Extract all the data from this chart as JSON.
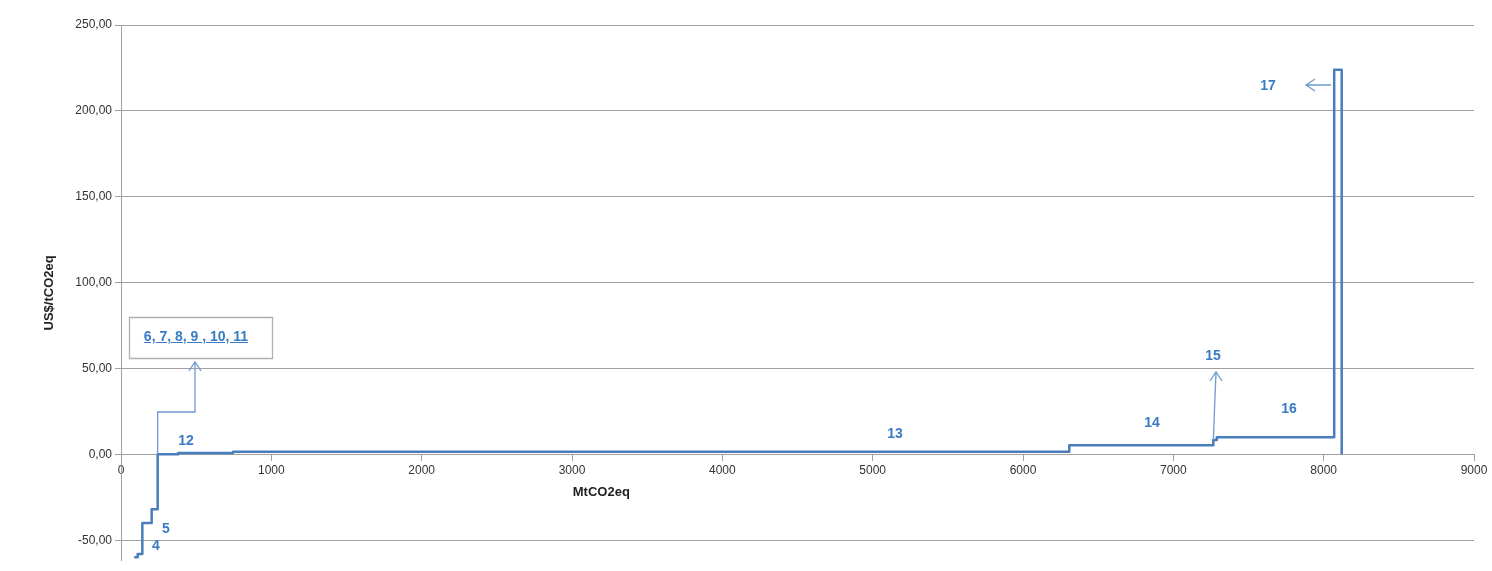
{
  "chart_data": {
    "type": "step",
    "xlabel": "MtCO2eq",
    "ylabel": "US$/tCO2eq",
    "x": [
      88,
      111,
      142,
      204,
      244,
      380,
      745,
      6308,
      7266,
      7289,
      8070,
      8120
    ],
    "series": [
      {
        "color": "#4a7ebb",
        "values": [
          -60,
          -58,
          -40,
          -32,
          0,
          0.8,
          1.5,
          5.3,
          8.4,
          10,
          224,
          0
        ]
      }
    ],
    "xlim": [
      0,
      9000
    ],
    "xticks": [
      0,
      1000,
      2000,
      3000,
      4000,
      5000,
      6000,
      7000,
      8000,
      9000
    ],
    "ylim": [
      -62,
      250
    ],
    "yticks": [
      {
        "value": -50,
        "label": "-50,00"
      },
      {
        "value": 0,
        "label": "0,00"
      },
      {
        "value": 50,
        "label": "50,00"
      },
      {
        "value": 100,
        "label": "100,00"
      },
      {
        "value": 150,
        "label": "150,00"
      },
      {
        "value": 200,
        "label": "200,00"
      },
      {
        "value": 250,
        "label": "250,00"
      }
    ],
    "grid": "y",
    "marker": "none",
    "line_style": "solid",
    "legend": false,
    "annotations": [
      "4",
      "5",
      {
        "text": "6, 7, 8, 9 , 10, 11",
        "x": 244,
        "y": 0
      },
      "12",
      "13",
      "14",
      {
        "text": "15",
        "x": 7266,
        "y": 8.4
      },
      "16",
      "17"
    ]
  }
}
